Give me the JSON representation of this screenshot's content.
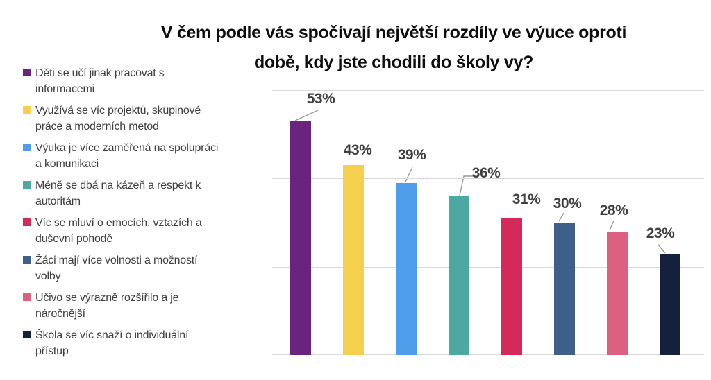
{
  "title": {
    "lines": [
      "V čem podle vás spočívají největší rozdíly ve výuce oproti",
      "době, kdy jste chodili do školy vy?"
    ]
  },
  "chart_data": {
    "type": "bar",
    "title": "V čem podle vás spočívají největší rozdíly ve výuce oproti době, kdy jste chodili do školy vy?",
    "categories": [
      "Děti se učí jinak pracovat s informacemi",
      "Využívá se víc projektů, skupinové práce a moderních metod",
      "Výuka je více zaměřená na spolupráci a komunikaci",
      "Méně se dbá na kázeň a respekt k autoritám",
      "Víc se mluví o emocích, vztazích a duševní pohodě",
      "Žáci mají více volnosti a možností volby",
      "Učivo se výrazně rozšířilo a je náročnější",
      "Škola se víc snaží o individuální přístup"
    ],
    "values": [
      53,
      43,
      39,
      36,
      31,
      30,
      28,
      23
    ],
    "data_labels": [
      "53%",
      "43%",
      "39%",
      "36%",
      "31%",
      "30%",
      "28%",
      "23%"
    ],
    "colors": [
      "#6B2380",
      "#F5D04E",
      "#4E9EEC",
      "#4BA9A2",
      "#D32A5B",
      "#3E5F87",
      "#DC6080",
      "#14203C"
    ],
    "unit": "%",
    "xlabel": "",
    "ylabel": "",
    "ylim": [
      0,
      60
    ],
    "grid": true,
    "grid_interval": 10,
    "legend_position": "left"
  },
  "legend": {
    "items": [
      {
        "lines": [
          "Děti se učí jinak pracovat s",
          "informacemi"
        ],
        "color": "#6B2380"
      },
      {
        "lines": [
          "Využívá se víc projektů, skupinové",
          "práce a moderních metod"
        ],
        "color": "#F5D04E"
      },
      {
        "lines": [
          "Výuka je více zaměřená na spolupráci",
          "a komunikaci"
        ],
        "color": "#4E9EEC"
      },
      {
        "lines": [
          "Méně se dbá na kázeň a respekt k",
          "autoritám"
        ],
        "color": "#4BA9A2"
      },
      {
        "lines": [
          "Víc se mluví o emocích, vztazích a",
          "duševní pohodě"
        ],
        "color": "#D32A5B"
      },
      {
        "lines": [
          "Žáci mají více volnosti a možností",
          "volby"
        ],
        "color": "#3E5F87"
      },
      {
        "lines": [
          "Učivo se výrazně rozšířilo a je",
          "náročnější"
        ],
        "color": "#DC6080"
      },
      {
        "lines": [
          "Škola se víc snaží o individuální",
          "přístup"
        ],
        "color": "#14203C"
      }
    ]
  },
  "colors": {
    "title_text": "#0D0D0D",
    "data_label_text": "#404040",
    "legend_text": "#3E3E3E",
    "gridline": "#D9D9D9",
    "leader_line": "#999999",
    "background": "#FFFFFF"
  }
}
